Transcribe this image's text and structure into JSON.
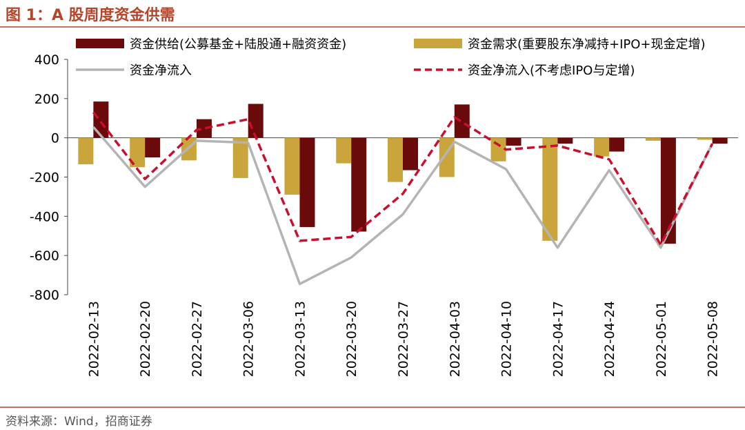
{
  "page": {
    "title": "图 1：A 股周度资金供需",
    "source": "资料来源：Wind，招商证券"
  },
  "colors": {
    "supply": "#6b0a0a",
    "demand": "#c9a53b",
    "net": "#b4b4b4",
    "net_ex": "#c8102e",
    "accent": "#b5462b"
  },
  "chart_data": {
    "type": "bar",
    "title": "A 股周度资金供需",
    "categories": [
      "2022-02-13",
      "2022-02-20",
      "2022-02-27",
      "2022-03-06",
      "2022-03-13",
      "2022-03-20",
      "2022-03-27",
      "2022-04-03",
      "2022-04-10",
      "2022-04-17",
      "2022-04-24",
      "2022-05-01",
      "2022-05-08"
    ],
    "ylim": [
      -800,
      400
    ],
    "yticks": [
      400,
      200,
      0,
      -200,
      -400,
      -600,
      -800
    ],
    "grid": false,
    "series": [
      {
        "name": "资金供给(公募基金+陆股通+融资资金)",
        "kind": "bar",
        "values": [
          185,
          -100,
          95,
          173,
          -455,
          -478,
          -165,
          170,
          -40,
          -30,
          -70,
          -540,
          -30
        ]
      },
      {
        "name": "资金需求(重要股东净减持+IPO+现金定增)",
        "kind": "bar",
        "values": [
          -135,
          -150,
          -115,
          -205,
          -290,
          -130,
          -225,
          -200,
          -120,
          -525,
          -95,
          -15,
          -10
        ]
      },
      {
        "name": "资金净流入",
        "kind": "line",
        "values": [
          55,
          -250,
          -15,
          -25,
          -745,
          -610,
          -390,
          -20,
          -160,
          -560,
          -165,
          -560,
          -30
        ]
      },
      {
        "name": "资金净流入(不考虑IPO与定增)",
        "kind": "dashed",
        "values": [
          130,
          -210,
          40,
          95,
          -525,
          -505,
          -285,
          105,
          -60,
          -40,
          -110,
          -545,
          -30
        ]
      }
    ]
  }
}
